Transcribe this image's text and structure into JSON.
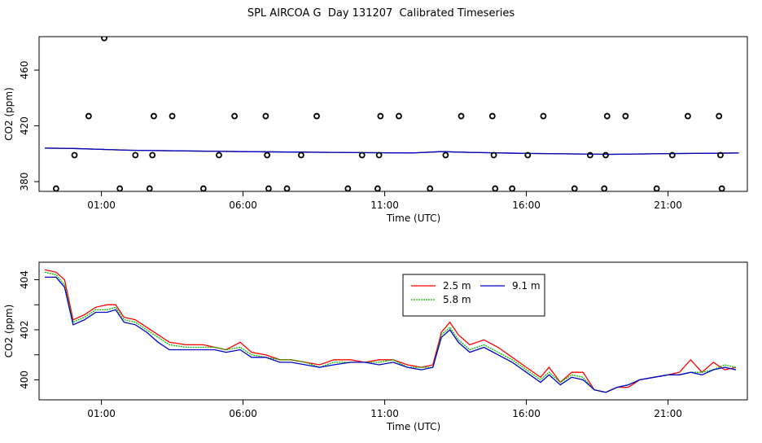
{
  "figure": {
    "title": "SPL AIRCOA G  Day 131207  Calibrated Timeseries"
  },
  "colors": {
    "s25": "#ff0000",
    "s58": "#00bb00",
    "s91": "#0000cc",
    "axis": "#000000"
  },
  "chart_data": [
    {
      "type": "scatter",
      "xlabel": "Time (UTC)",
      "ylabel": "CO2 (ppm)",
      "xlim": [
        -1.2,
        23.8
      ],
      "ylim": [
        373,
        484
      ],
      "xticks": [
        1,
        6,
        11,
        16,
        21
      ],
      "xtick_labels": [
        "01:00",
        "06:00",
        "11:00",
        "16:00",
        "21:00"
      ],
      "yticks": [
        380,
        420,
        460
      ],
      "ytick_labels": [
        "380",
        "420",
        "460"
      ],
      "points": [
        [
          -0.6,
          375
        ],
        [
          0.05,
          399
        ],
        [
          0.55,
          427
        ],
        [
          1.1,
          483
        ],
        [
          1.65,
          375
        ],
        [
          2.2,
          399
        ],
        [
          2.7,
          375
        ],
        [
          2.8,
          399
        ],
        [
          2.85,
          427
        ],
        [
          3.5,
          427
        ],
        [
          4.6,
          375
        ],
        [
          5.15,
          399
        ],
        [
          5.7,
          427
        ],
        [
          6.8,
          427
        ],
        [
          6.85,
          399
        ],
        [
          6.9,
          375
        ],
        [
          7.55,
          375
        ],
        [
          8.05,
          399
        ],
        [
          8.6,
          427
        ],
        [
          9.7,
          375
        ],
        [
          10.2,
          399
        ],
        [
          10.75,
          375
        ],
        [
          10.8,
          399
        ],
        [
          10.85,
          427
        ],
        [
          11.5,
          427
        ],
        [
          12.6,
          375
        ],
        [
          13.15,
          399
        ],
        [
          13.7,
          427
        ],
        [
          14.8,
          427
        ],
        [
          14.85,
          399
        ],
        [
          14.9,
          375
        ],
        [
          15.5,
          375
        ],
        [
          16.05,
          399
        ],
        [
          16.6,
          427
        ],
        [
          17.7,
          375
        ],
        [
          18.25,
          399
        ],
        [
          18.75,
          375
        ],
        [
          18.8,
          399
        ],
        [
          18.85,
          427
        ],
        [
          19.5,
          427
        ],
        [
          20.6,
          375
        ],
        [
          21.15,
          399
        ],
        [
          21.7,
          427
        ],
        [
          22.8,
          427
        ],
        [
          22.85,
          399
        ],
        [
          22.9,
          375
        ]
      ],
      "series": [
        {
          "values": [
            [
              -1.0,
              404
            ],
            [
              0.0,
              403.8
            ],
            [
              2.0,
              402.5
            ],
            [
              6.0,
              401.5
            ],
            [
              10.0,
              400.8
            ],
            [
              12.0,
              400.6
            ],
            [
              13.0,
              401.5
            ],
            [
              14.0,
              401
            ],
            [
              16.0,
              400.2
            ],
            [
              19.0,
              399.6
            ],
            [
              21.0,
              400.1
            ],
            [
              23.5,
              400.5
            ]
          ]
        },
        {
          "values": [
            [
              -1.0,
              404
            ],
            [
              0.0,
              403.8
            ],
            [
              2.0,
              402.5
            ],
            [
              6.0,
              401.5
            ],
            [
              10.0,
              400.8
            ],
            [
              12.0,
              400.6
            ],
            [
              13.0,
              401.5
            ],
            [
              14.0,
              401
            ],
            [
              16.0,
              400.2
            ],
            [
              19.0,
              399.6
            ],
            [
              21.0,
              400.1
            ],
            [
              23.5,
              400.5
            ]
          ]
        },
        {
          "values": [
            [
              -1.0,
              404
            ],
            [
              0.0,
              403.8
            ],
            [
              2.0,
              402.5
            ],
            [
              6.0,
              401.5
            ],
            [
              10.0,
              400.8
            ],
            [
              12.0,
              400.6
            ],
            [
              13.0,
              401.5
            ],
            [
              14.0,
              401
            ],
            [
              16.0,
              400.2
            ],
            [
              19.0,
              399.6
            ],
            [
              21.0,
              400.1
            ],
            [
              23.5,
              400.5
            ]
          ]
        }
      ]
    },
    {
      "type": "line",
      "xlabel": "Time (UTC)",
      "ylabel": "CO2 (ppm)",
      "xlim": [
        -1.2,
        23.8
      ],
      "ylim": [
        399.2,
        404.7
      ],
      "xticks": [
        1,
        6,
        11,
        16,
        21
      ],
      "xtick_labels": [
        "01:00",
        "06:00",
        "11:00",
        "16:00",
        "21:00"
      ],
      "yticks": [
        400,
        401,
        402,
        403,
        404
      ],
      "ytick_labels": [
        "400",
        "",
        "402",
        "",
        "404"
      ],
      "legend": {
        "position": "top-right-center",
        "entries": [
          "2.5 m",
          "9.1 m",
          "5.8 m"
        ]
      },
      "series": [
        {
          "name": "2.5 m",
          "values": [
            [
              -1.0,
              404.4
            ],
            [
              -0.6,
              404.3
            ],
            [
              -0.3,
              404.0
            ],
            [
              0.0,
              402.4
            ],
            [
              0.4,
              402.6
            ],
            [
              0.8,
              402.9
            ],
            [
              1.2,
              403.0
            ],
            [
              1.5,
              403.0
            ],
            [
              1.8,
              402.5
            ],
            [
              2.2,
              402.4
            ],
            [
              2.6,
              402.1
            ],
            [
              3.0,
              401.8
            ],
            [
              3.4,
              401.5
            ],
            [
              4.0,
              401.4
            ],
            [
              4.6,
              401.4
            ],
            [
              5.0,
              401.3
            ],
            [
              5.4,
              401.2
            ],
            [
              5.9,
              401.5
            ],
            [
              6.3,
              401.1
            ],
            [
              6.8,
              401.0
            ],
            [
              7.3,
              400.8
            ],
            [
              7.7,
              400.8
            ],
            [
              8.2,
              400.7
            ],
            [
              8.7,
              400.6
            ],
            [
              9.2,
              400.8
            ],
            [
              9.8,
              400.8
            ],
            [
              10.3,
              400.7
            ],
            [
              10.8,
              400.8
            ],
            [
              11.3,
              400.8
            ],
            [
              11.8,
              400.6
            ],
            [
              12.3,
              400.5
            ],
            [
              12.7,
              400.6
            ],
            [
              13.0,
              401.9
            ],
            [
              13.3,
              402.3
            ],
            [
              13.6,
              401.8
            ],
            [
              14.0,
              401.4
            ],
            [
              14.5,
              401.6
            ],
            [
              15.0,
              401.3
            ],
            [
              15.5,
              400.9
            ],
            [
              16.0,
              400.5
            ],
            [
              16.5,
              400.1
            ],
            [
              16.8,
              400.5
            ],
            [
              17.2,
              399.9
            ],
            [
              17.6,
              400.3
            ],
            [
              18.0,
              400.3
            ],
            [
              18.4,
              399.6
            ],
            [
              18.8,
              399.5
            ],
            [
              19.2,
              399.7
            ],
            [
              19.6,
              399.7
            ],
            [
              20.0,
              400.0
            ],
            [
              20.5,
              400.1
            ],
            [
              21.0,
              400.2
            ],
            [
              21.4,
              400.3
            ],
            [
              21.8,
              400.8
            ],
            [
              22.2,
              400.3
            ],
            [
              22.6,
              400.7
            ],
            [
              23.0,
              400.4
            ],
            [
              23.4,
              400.5
            ]
          ]
        },
        {
          "name": "9.1 m",
          "values": [
            [
              -1.0,
              404.3
            ],
            [
              -0.6,
              404.2
            ],
            [
              -0.3,
              403.8
            ],
            [
              0.0,
              402.3
            ],
            [
              0.4,
              402.5
            ],
            [
              0.8,
              402.8
            ],
            [
              1.2,
              402.8
            ],
            [
              1.5,
              402.9
            ],
            [
              1.8,
              402.4
            ],
            [
              2.2,
              402.3
            ],
            [
              2.6,
              402.0
            ],
            [
              3.0,
              401.7
            ],
            [
              3.4,
              401.4
            ],
            [
              4.0,
              401.3
            ],
            [
              4.6,
              401.3
            ],
            [
              5.0,
              401.3
            ],
            [
              5.4,
              401.2
            ],
            [
              5.9,
              401.3
            ],
            [
              6.3,
              401.0
            ],
            [
              6.8,
              400.9
            ],
            [
              7.3,
              400.8
            ],
            [
              7.7,
              400.8
            ],
            [
              8.2,
              400.7
            ],
            [
              8.7,
              400.5
            ],
            [
              9.2,
              400.7
            ],
            [
              9.8,
              400.7
            ],
            [
              10.3,
              400.7
            ],
            [
              10.8,
              400.7
            ],
            [
              11.3,
              400.8
            ],
            [
              11.8,
              400.5
            ],
            [
              12.3,
              400.5
            ],
            [
              12.7,
              400.5
            ],
            [
              13.0,
              401.8
            ],
            [
              13.3,
              402.1
            ],
            [
              13.6,
              401.6
            ],
            [
              14.0,
              401.2
            ],
            [
              14.5,
              401.4
            ],
            [
              15.0,
              401.1
            ],
            [
              15.5,
              400.8
            ],
            [
              16.0,
              400.4
            ],
            [
              16.5,
              400.0
            ],
            [
              16.8,
              400.3
            ],
            [
              17.2,
              399.9
            ],
            [
              17.6,
              400.2
            ],
            [
              18.0,
              400.1
            ],
            [
              18.4,
              399.6
            ],
            [
              18.8,
              399.5
            ],
            [
              19.2,
              399.7
            ],
            [
              19.6,
              399.8
            ],
            [
              20.0,
              400.0
            ],
            [
              20.5,
              400.1
            ],
            [
              21.0,
              400.2
            ],
            [
              21.4,
              400.2
            ],
            [
              21.8,
              400.3
            ],
            [
              22.2,
              400.3
            ],
            [
              22.6,
              400.4
            ],
            [
              23.0,
              400.6
            ],
            [
              23.4,
              400.5
            ]
          ]
        },
        {
          "name": "5.8 m",
          "values": [
            [
              -1.0,
              404.1
            ],
            [
              -0.6,
              404.1
            ],
            [
              -0.3,
              403.7
            ],
            [
              0.0,
              402.2
            ],
            [
              0.4,
              402.4
            ],
            [
              0.8,
              402.7
            ],
            [
              1.2,
              402.7
            ],
            [
              1.5,
              402.8
            ],
            [
              1.8,
              402.3
            ],
            [
              2.2,
              402.2
            ],
            [
              2.6,
              401.9
            ],
            [
              3.0,
              401.5
            ],
            [
              3.4,
              401.2
            ],
            [
              4.0,
              401.2
            ],
            [
              4.6,
              401.2
            ],
            [
              5.0,
              401.2
            ],
            [
              5.4,
              401.1
            ],
            [
              5.9,
              401.2
            ],
            [
              6.3,
              400.9
            ],
            [
              6.8,
              400.9
            ],
            [
              7.3,
              400.7
            ],
            [
              7.7,
              400.7
            ],
            [
              8.2,
              400.6
            ],
            [
              8.7,
              400.5
            ],
            [
              9.2,
              400.6
            ],
            [
              9.8,
              400.7
            ],
            [
              10.3,
              400.7
            ],
            [
              10.8,
              400.6
            ],
            [
              11.3,
              400.7
            ],
            [
              11.8,
              400.5
            ],
            [
              12.3,
              400.4
            ],
            [
              12.7,
              400.5
            ],
            [
              13.0,
              401.7
            ],
            [
              13.3,
              402.0
            ],
            [
              13.6,
              401.5
            ],
            [
              14.0,
              401.1
            ],
            [
              14.5,
              401.3
            ],
            [
              15.0,
              401.0
            ],
            [
              15.5,
              400.7
            ],
            [
              16.0,
              400.3
            ],
            [
              16.5,
              399.9
            ],
            [
              16.8,
              400.2
            ],
            [
              17.2,
              399.8
            ],
            [
              17.6,
              400.1
            ],
            [
              18.0,
              400.0
            ],
            [
              18.4,
              399.6
            ],
            [
              18.8,
              399.5
            ],
            [
              19.2,
              399.7
            ],
            [
              19.6,
              399.8
            ],
            [
              20.0,
              400.0
            ],
            [
              20.5,
              400.1
            ],
            [
              21.0,
              400.2
            ],
            [
              21.4,
              400.2
            ],
            [
              21.8,
              400.3
            ],
            [
              22.2,
              400.2
            ],
            [
              22.6,
              400.4
            ],
            [
              23.0,
              400.5
            ],
            [
              23.4,
              400.4
            ]
          ]
        }
      ]
    }
  ]
}
